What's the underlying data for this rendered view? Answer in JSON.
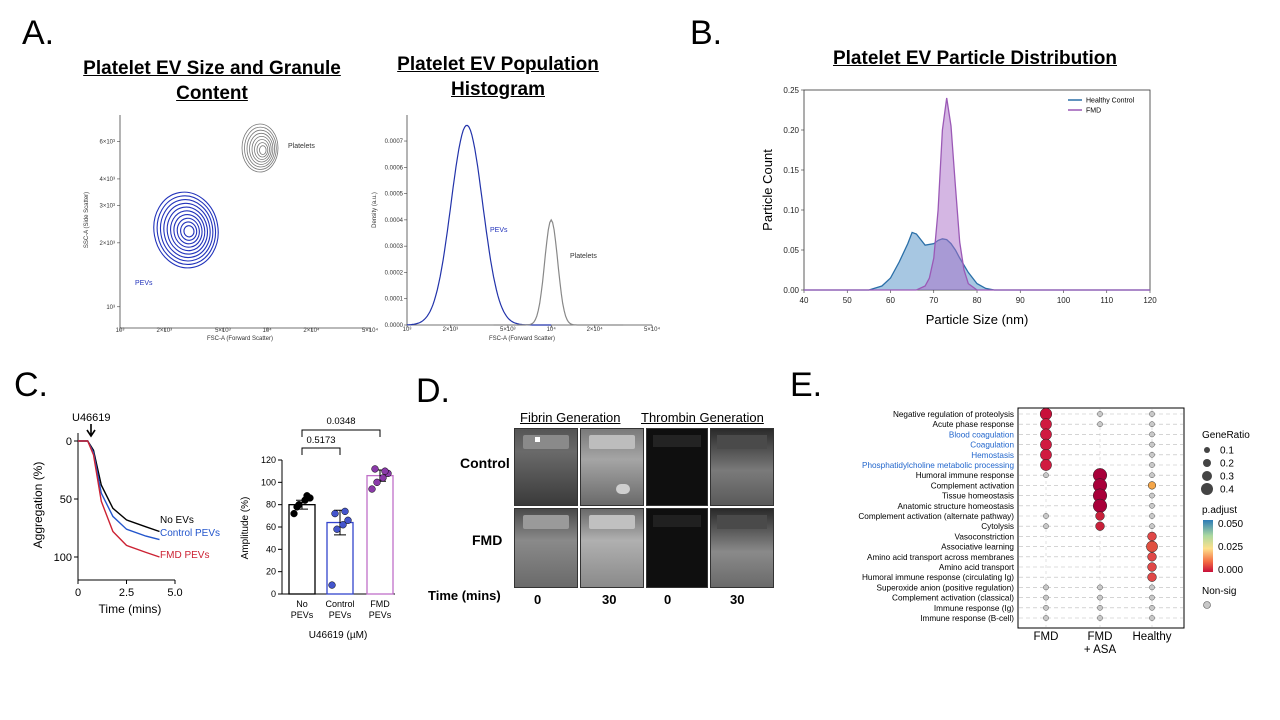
{
  "panels": {
    "A": {
      "letter": "A.",
      "title1": "Platelet EV Size and Granule Content",
      "title2": "Platelet EV Population Histogram",
      "ylabel1": "SSC-A (Side Scatter)",
      "xlabel1": "FSC-A (Forward Scatter)",
      "label_platelets1": "Platelets",
      "label_pevs1": "PEVs",
      "ylabel2": "Density (a.u.)",
      "xlabel2": "FSC-A (Forward Scatter)",
      "label_pevs2": "PEVs",
      "label_platelets2": "Platelets"
    },
    "B": {
      "letter": "B.",
      "title": "Platelet EV Particle Distribution"
    },
    "C": {
      "letter": "C.",
      "agonist": "U46619",
      "ylabel": "Aggregation (%)",
      "xlabel": "Time (mins)",
      "curves": [
        "No EVs",
        "Control PEVs",
        "FMD PEVs"
      ],
      "bar_ylabel": "Amplitude (%)",
      "bar_xlabel": "U46619 (µM)",
      "p1": "0.5173",
      "p2": "0.0348"
    },
    "D": {
      "letter": "D.",
      "header1": "Fibrin Generation",
      "header2": "Thrombin Generation",
      "row1": "Control",
      "row2": "FMD",
      "time_label": "Time (mins)",
      "times": [
        "0",
        "30",
        "0",
        "30"
      ]
    },
    "E": {
      "letter": "E.",
      "legend_generatio_title": "GeneRatio",
      "generatio_values": [
        "0.1",
        "0.2",
        "0.3",
        "0.4"
      ],
      "legend_padj_title": "p.adjust",
      "padj_values": [
        "0.050",
        "0.025",
        "0.000"
      ],
      "legend_nonsig": "Non-sig"
    }
  },
  "chart_data": [
    {
      "type": "scatter",
      "subtype": "density-contour",
      "title": "Platelet EV Size and Granule Content",
      "xlabel": "FSC-A (Forward Scatter)",
      "ylabel": "SSC-A (Side Scatter)",
      "x_ticks": [
        "10³",
        "2×10³",
        "5×10³",
        "10⁴",
        "2×10⁴",
        "5×10⁴"
      ],
      "y_ticks": [
        "10³",
        "2×10³",
        "3×10³",
        "4×10³",
        "6×10³"
      ],
      "populations": [
        {
          "name": "Platelets",
          "x": 10000,
          "y": 5200
        },
        {
          "name": "PEVs",
          "x": 2200,
          "y": 2000
        }
      ]
    },
    {
      "type": "line",
      "title": "Platelet EV Population Histogram",
      "xlabel": "FSC-A (Forward Scatter)",
      "ylabel": "Density (a.u.)",
      "x_ticks": [
        "10³",
        "2×10³",
        "5×10³",
        "10⁴",
        "2×10⁴",
        "5×10⁴"
      ],
      "y_ticks": [
        "0.0000",
        "0.0001",
        "0.0002",
        "0.0003",
        "0.0004",
        "0.0005",
        "0.0006",
        "0.0007"
      ],
      "series": [
        {
          "name": "PEVs",
          "peak_x": 2600,
          "peak_y": 0.00076
        },
        {
          "name": "Platelets",
          "peak_x": 10000,
          "peak_y": 0.0004
        }
      ]
    },
    {
      "type": "area",
      "title": "Platelet EV Particle Distribution",
      "xlabel": "Particle Size (nm)",
      "ylabel": "Particle Count",
      "xlim": [
        40,
        120
      ],
      "ylim": [
        0,
        0.25
      ],
      "x_ticks": [
        "40",
        "50",
        "60",
        "70",
        "80",
        "90",
        "100",
        "110",
        "120"
      ],
      "y_ticks": [
        "0.00",
        "0.05",
        "0.10",
        "0.15",
        "0.20",
        "0.25"
      ],
      "legend_position": "top-right",
      "series": [
        {
          "name": "Healthy Control",
          "color": "#2a6fa8",
          "x": [
            40,
            55,
            58,
            60,
            62,
            64,
            65,
            66,
            68,
            70,
            71,
            72,
            73,
            74,
            75,
            76,
            78,
            80,
            82,
            84,
            86,
            120
          ],
          "y": [
            0,
            0,
            0.005,
            0.015,
            0.035,
            0.058,
            0.072,
            0.07,
            0.056,
            0.058,
            0.062,
            0.064,
            0.063,
            0.058,
            0.05,
            0.04,
            0.022,
            0.008,
            0.002,
            0,
            0,
            0
          ]
        },
        {
          "name": "FMD",
          "color": "#9b59b6",
          "x": [
            40,
            66,
            68,
            69,
            70,
            71,
            72,
            73,
            74,
            75,
            76,
            77,
            78,
            80,
            120
          ],
          "y": [
            0,
            0,
            0.005,
            0.015,
            0.04,
            0.1,
            0.2,
            0.24,
            0.205,
            0.13,
            0.06,
            0.025,
            0.008,
            0,
            0
          ]
        }
      ]
    },
    {
      "type": "line",
      "title": "",
      "xlabel": "Time (mins)",
      "ylabel": "Aggregation (%)",
      "x_ticks": [
        "0",
        "2.5",
        "5.0"
      ],
      "y_ticks": [
        "0",
        "50",
        "100"
      ],
      "xlim": [
        0,
        5
      ],
      "ylim": [
        0,
        110
      ],
      "series": [
        {
          "name": "No EVs",
          "color": "#000000",
          "x": [
            0,
            0.5,
            0.8,
            1.2,
            1.8,
            2.5,
            3.5,
            4.2
          ],
          "y": [
            0,
            0,
            8,
            38,
            58,
            68,
            74,
            78
          ]
        },
        {
          "name": "Control PEVs",
          "color": "#2255cc",
          "x": [
            0,
            0.5,
            0.8,
            1.2,
            1.8,
            2.5,
            3.5,
            4.2
          ],
          "y": [
            0,
            0,
            10,
            45,
            65,
            76,
            82,
            85
          ]
        },
        {
          "name": "FMD PEVs",
          "color": "#cc2233",
          "x": [
            0,
            0.5,
            0.8,
            1.2,
            1.8,
            2.5,
            3.5,
            4.2
          ],
          "y": [
            0,
            0,
            12,
            52,
            78,
            90,
            96,
            100
          ]
        }
      ]
    },
    {
      "type": "bar",
      "title": "",
      "xlabel": "U46619 (µM)",
      "ylabel": "Amplitude (%)",
      "categories": [
        "No PEVs",
        "Control PEVs",
        "FMD PEVs"
      ],
      "values": [
        80,
        64,
        106
      ],
      "sem": [
        4,
        11,
        5
      ],
      "ylim": [
        0,
        120
      ],
      "y_ticks": [
        "0",
        "20",
        "40",
        "60",
        "80",
        "100",
        "120"
      ],
      "points": [
        [
          72,
          80,
          84,
          86,
          78,
          88
        ],
        [
          8,
          58,
          62,
          66,
          72,
          74
        ],
        [
          94,
          100,
          104,
          108,
          112,
          110
        ]
      ],
      "comparisons": [
        {
          "a": "No PEVs",
          "b": "Control PEVs",
          "p": "0.5173"
        },
        {
          "a": "No PEVs",
          "b": "FMD PEVs",
          "p": "0.0348"
        }
      ]
    },
    {
      "type": "scatter",
      "subtype": "dot-plot",
      "title": "",
      "columns": [
        "FMD",
        "FMD\n+ ASA",
        "Healthy"
      ],
      "terms": [
        {
          "label": "Negative regulation of proteolysis",
          "highlight": false
        },
        {
          "label": "Acute phase response",
          "highlight": false
        },
        {
          "label": "Blood coagulation",
          "highlight": true
        },
        {
          "label": "Coagulation",
          "highlight": true
        },
        {
          "label": "Hemostasis",
          "highlight": true
        },
        {
          "label": "Phosphatidylcholine metabolic processing",
          "highlight": true
        },
        {
          "label": "Humoral immune response",
          "highlight": false
        },
        {
          "label": "Complement activation",
          "highlight": false
        },
        {
          "label": "Tissue homeostasis",
          "highlight": false
        },
        {
          "label": "Anatomic structure homeostasis",
          "highlight": false
        },
        {
          "label": "Complement activation (alternate pathway)",
          "highlight": false
        },
        {
          "label": "Cytolysis",
          "highlight": false
        },
        {
          "label": "Vasoconstriction",
          "highlight": false
        },
        {
          "label": "Associative learning",
          "highlight": false
        },
        {
          "label": "Amino acid transport across membranes",
          "highlight": false
        },
        {
          "label": "Amino acid transport",
          "highlight": false
        },
        {
          "label": "Humoral immune response (circulating Ig)",
          "highlight": false
        },
        {
          "label": "Superoxide anion (positive regulation)",
          "highlight": false
        },
        {
          "label": "Complement activation (classical)",
          "highlight": false
        },
        {
          "label": "Immune response (Ig)",
          "highlight": false
        },
        {
          "label": "Immune response (B-cell)",
          "highlight": false
        }
      ],
      "dots": [
        [
          [
            "sig",
            0.32,
            "#c8103a"
          ],
          [
            "ns",
            0,
            ""
          ],
          [
            "ns",
            0,
            ""
          ]
        ],
        [
          [
            "sig",
            0.3,
            "#d01a40"
          ],
          [
            "ns",
            0,
            ""
          ],
          [
            "ns",
            0,
            ""
          ]
        ],
        [
          [
            "sig",
            0.3,
            "#d01a40"
          ],
          null,
          [
            "ns",
            0,
            ""
          ]
        ],
        [
          [
            "sig",
            0.3,
            "#d01a40"
          ],
          null,
          [
            "ns",
            0,
            ""
          ]
        ],
        [
          [
            "sig",
            0.3,
            "#d01a40"
          ],
          null,
          [
            "ns",
            0,
            ""
          ]
        ],
        [
          [
            "sig",
            0.3,
            "#d01a40"
          ],
          null,
          [
            "ns",
            0,
            ""
          ]
        ],
        [
          [
            "ns",
            0,
            ""
          ],
          [
            "sig",
            0.4,
            "#a8003a"
          ],
          [
            "ns",
            0,
            ""
          ]
        ],
        [
          null,
          [
            "sig",
            0.4,
            "#a8003a"
          ],
          [
            "sig",
            0.15,
            "#f4a64a"
          ]
        ],
        [
          null,
          [
            "sig",
            0.4,
            "#a8003a"
          ],
          [
            "ns",
            0,
            ""
          ]
        ],
        [
          null,
          [
            "sig",
            0.4,
            "#a8003a"
          ],
          [
            "ns",
            0,
            ""
          ]
        ],
        [
          [
            "ns",
            0,
            ""
          ],
          [
            "sig",
            0.2,
            "#c8203a"
          ],
          [
            "ns",
            0,
            ""
          ]
        ],
        [
          [
            "ns",
            0,
            ""
          ],
          [
            "sig",
            0.2,
            "#c8203a"
          ],
          [
            "ns",
            0,
            ""
          ]
        ],
        [
          null,
          null,
          [
            "sig",
            0.2,
            "#e04848"
          ]
        ],
        [
          null,
          null,
          [
            "sig",
            0.3,
            "#e05040"
          ]
        ],
        [
          null,
          null,
          [
            "sig",
            0.2,
            "#e04848"
          ]
        ],
        [
          null,
          null,
          [
            "sig",
            0.2,
            "#e04848"
          ]
        ],
        [
          null,
          null,
          [
            "sig",
            0.2,
            "#e04848"
          ]
        ],
        [
          [
            "ns",
            0,
            ""
          ],
          [
            "ns",
            0,
            ""
          ],
          [
            "ns",
            0,
            ""
          ]
        ],
        [
          [
            "ns",
            0,
            ""
          ],
          [
            "ns",
            0,
            ""
          ],
          [
            "ns",
            0,
            ""
          ]
        ],
        [
          [
            "ns",
            0,
            ""
          ],
          [
            "ns",
            0,
            ""
          ],
          [
            "ns",
            0,
            ""
          ]
        ],
        [
          [
            "ns",
            0,
            ""
          ],
          [
            "ns",
            0,
            ""
          ],
          [
            "ns",
            0,
            ""
          ]
        ]
      ]
    }
  ]
}
